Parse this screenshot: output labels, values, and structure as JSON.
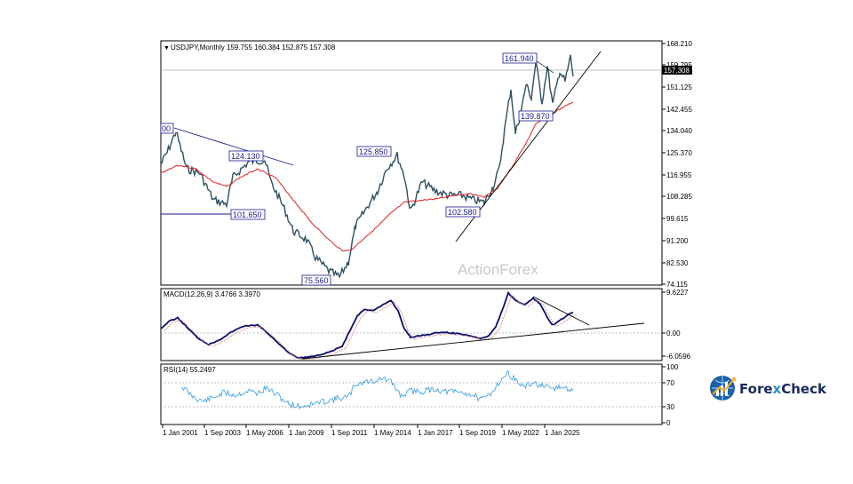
{
  "chart_data": {
    "type": "line",
    "watermark": "ActionForex",
    "x_ticks": [
      "1 Jan 2001",
      "1 Sep 2003",
      "1 May 2006",
      "1 Jan 2009",
      "1 Sep 2011",
      "1 May 2014",
      "1 Jan 2017",
      "1 Sep 2019",
      "1 May 2022",
      "1 Jan 2025"
    ],
    "price_panel": {
      "header": "USDJPY,Monthly  159.755 160.384 152.875 157.308",
      "y_ticks": [
        "168.210",
        "159.795",
        "151.125",
        "142.455",
        "134.040",
        "125.370",
        "116.955",
        "108.285",
        "99.615",
        "91.200",
        "82.530",
        "74.115"
      ],
      "ylim": [
        74.115,
        168.21
      ],
      "last_price": "157.308",
      "annotations": [
        "161.940",
        "139.870",
        "125.850",
        "124.130",
        "102.580",
        "101.650",
        "75.560",
        "00"
      ],
      "colors": {
        "price": "#2f4f5f",
        "moving_average": "#e02020",
        "trendline": "#000000",
        "channel": "#1a1a8c"
      }
    },
    "macd_panel": {
      "header": "MACD(12,26,9) 3.4766 3.3970",
      "y_ticks": [
        "9.6227",
        "0.00",
        "-6.0596"
      ],
      "ylim": [
        -6.0596,
        9.6227
      ],
      "colors": {
        "macd": "#0d0d6b",
        "signal": "#d08080"
      }
    },
    "rsi_panel": {
      "header": "RSI(14) 55.2497",
      "y_ticks": [
        "100",
        "70",
        "30",
        "0"
      ],
      "ylim": [
        0,
        100
      ],
      "color": "#3399dd"
    }
  },
  "brand": {
    "part1": "Fore",
    "part2": "x",
    "part3": "Check"
  }
}
